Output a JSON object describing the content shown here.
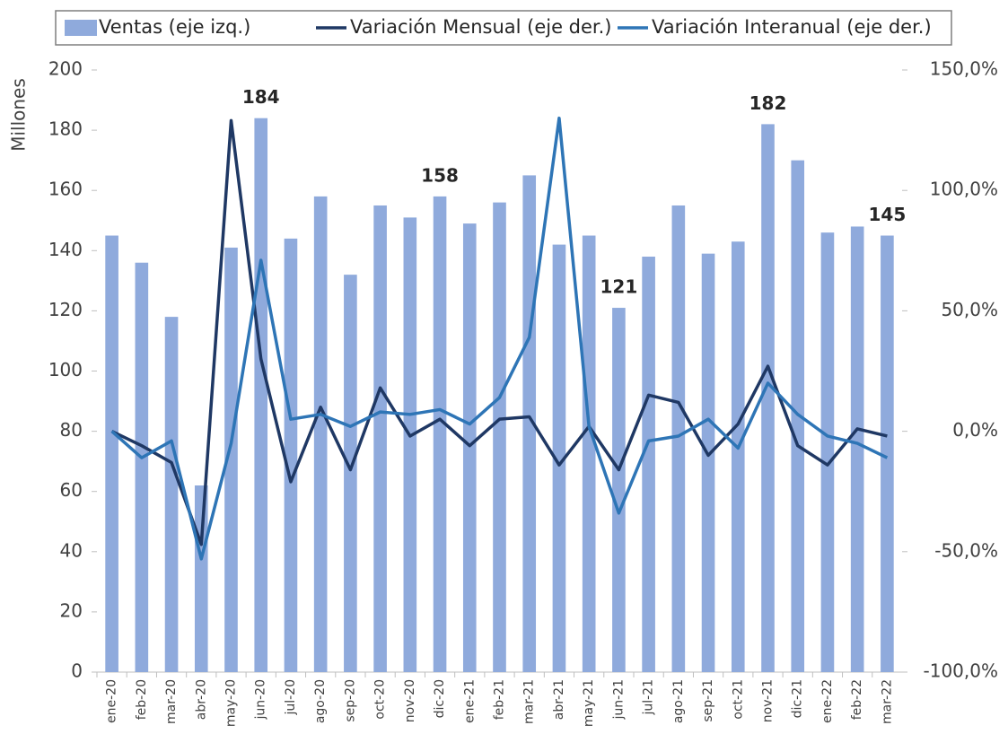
{
  "chart_data": {
    "type": "combo",
    "y_label": "Millones",
    "categories": [
      "ene-20",
      "feb-20",
      "mar-20",
      "abr-20",
      "may-20",
      "jun-20",
      "jul-20",
      "ago-20",
      "sep-20",
      "oct-20",
      "nov-20",
      "dic-20",
      "ene-21",
      "feb-21",
      "mar-21",
      "abr-21",
      "may-21",
      "jun-21",
      "jul-21",
      "ago-21",
      "sep-21",
      "oct-21",
      "nov-21",
      "dic-21",
      "ene-22",
      "feb-22",
      "mar-22"
    ],
    "series": [
      {
        "name": "Ventas (eje izq.)",
        "type": "bar",
        "color": "#8faadc",
        "values": [
          145,
          136,
          118,
          62,
          141,
          184,
          144,
          158,
          132,
          155,
          151,
          158,
          149,
          156,
          165,
          142,
          145,
          121,
          138,
          155,
          139,
          143,
          182,
          170,
          146,
          148,
          145
        ],
        "value_labels": [
          null,
          null,
          null,
          null,
          null,
          "184",
          null,
          null,
          null,
          null,
          null,
          "158",
          null,
          null,
          null,
          null,
          null,
          "121",
          null,
          null,
          null,
          null,
          "182",
          null,
          null,
          null,
          "145"
        ]
      },
      {
        "name": "Variación Mensual (eje der.)",
        "type": "line",
        "axis": "y2",
        "color": "#1f3864",
        "values": [
          0,
          -6,
          -13,
          -47,
          129,
          30,
          -21,
          10,
          -16,
          18,
          -2,
          5,
          -6,
          5,
          6,
          -14,
          2,
          -16,
          15,
          12,
          -10,
          3,
          27,
          -6,
          -14,
          1,
          -2
        ]
      },
      {
        "name": "Variación Interanual (eje der.)",
        "type": "line",
        "axis": "y2",
        "color": "#2e75b6",
        "values": [
          0,
          -11,
          -4,
          -53,
          -5,
          71,
          5,
          7,
          2,
          8,
          7,
          9,
          3,
          14,
          39,
          130,
          2,
          -34,
          -4,
          -2,
          5,
          -7,
          20,
          7,
          -2,
          -5,
          -11
        ]
      }
    ],
    "ylim": [
      0,
      200
    ],
    "yticks": [
      0,
      20,
      40,
      60,
      80,
      100,
      120,
      140,
      160,
      180,
      200
    ],
    "y2lim": [
      -100,
      150
    ],
    "y2ticks": [
      {
        "value": -100,
        "label": "-100,0%"
      },
      {
        "value": -50,
        "label": "-50,0%"
      },
      {
        "value": 0,
        "label": "0,0%"
      },
      {
        "value": 50,
        "label": "50,0%"
      },
      {
        "value": 100,
        "label": "100,0%"
      },
      {
        "value": 150,
        "label": "150,0%"
      }
    ],
    "legend": "top"
  }
}
